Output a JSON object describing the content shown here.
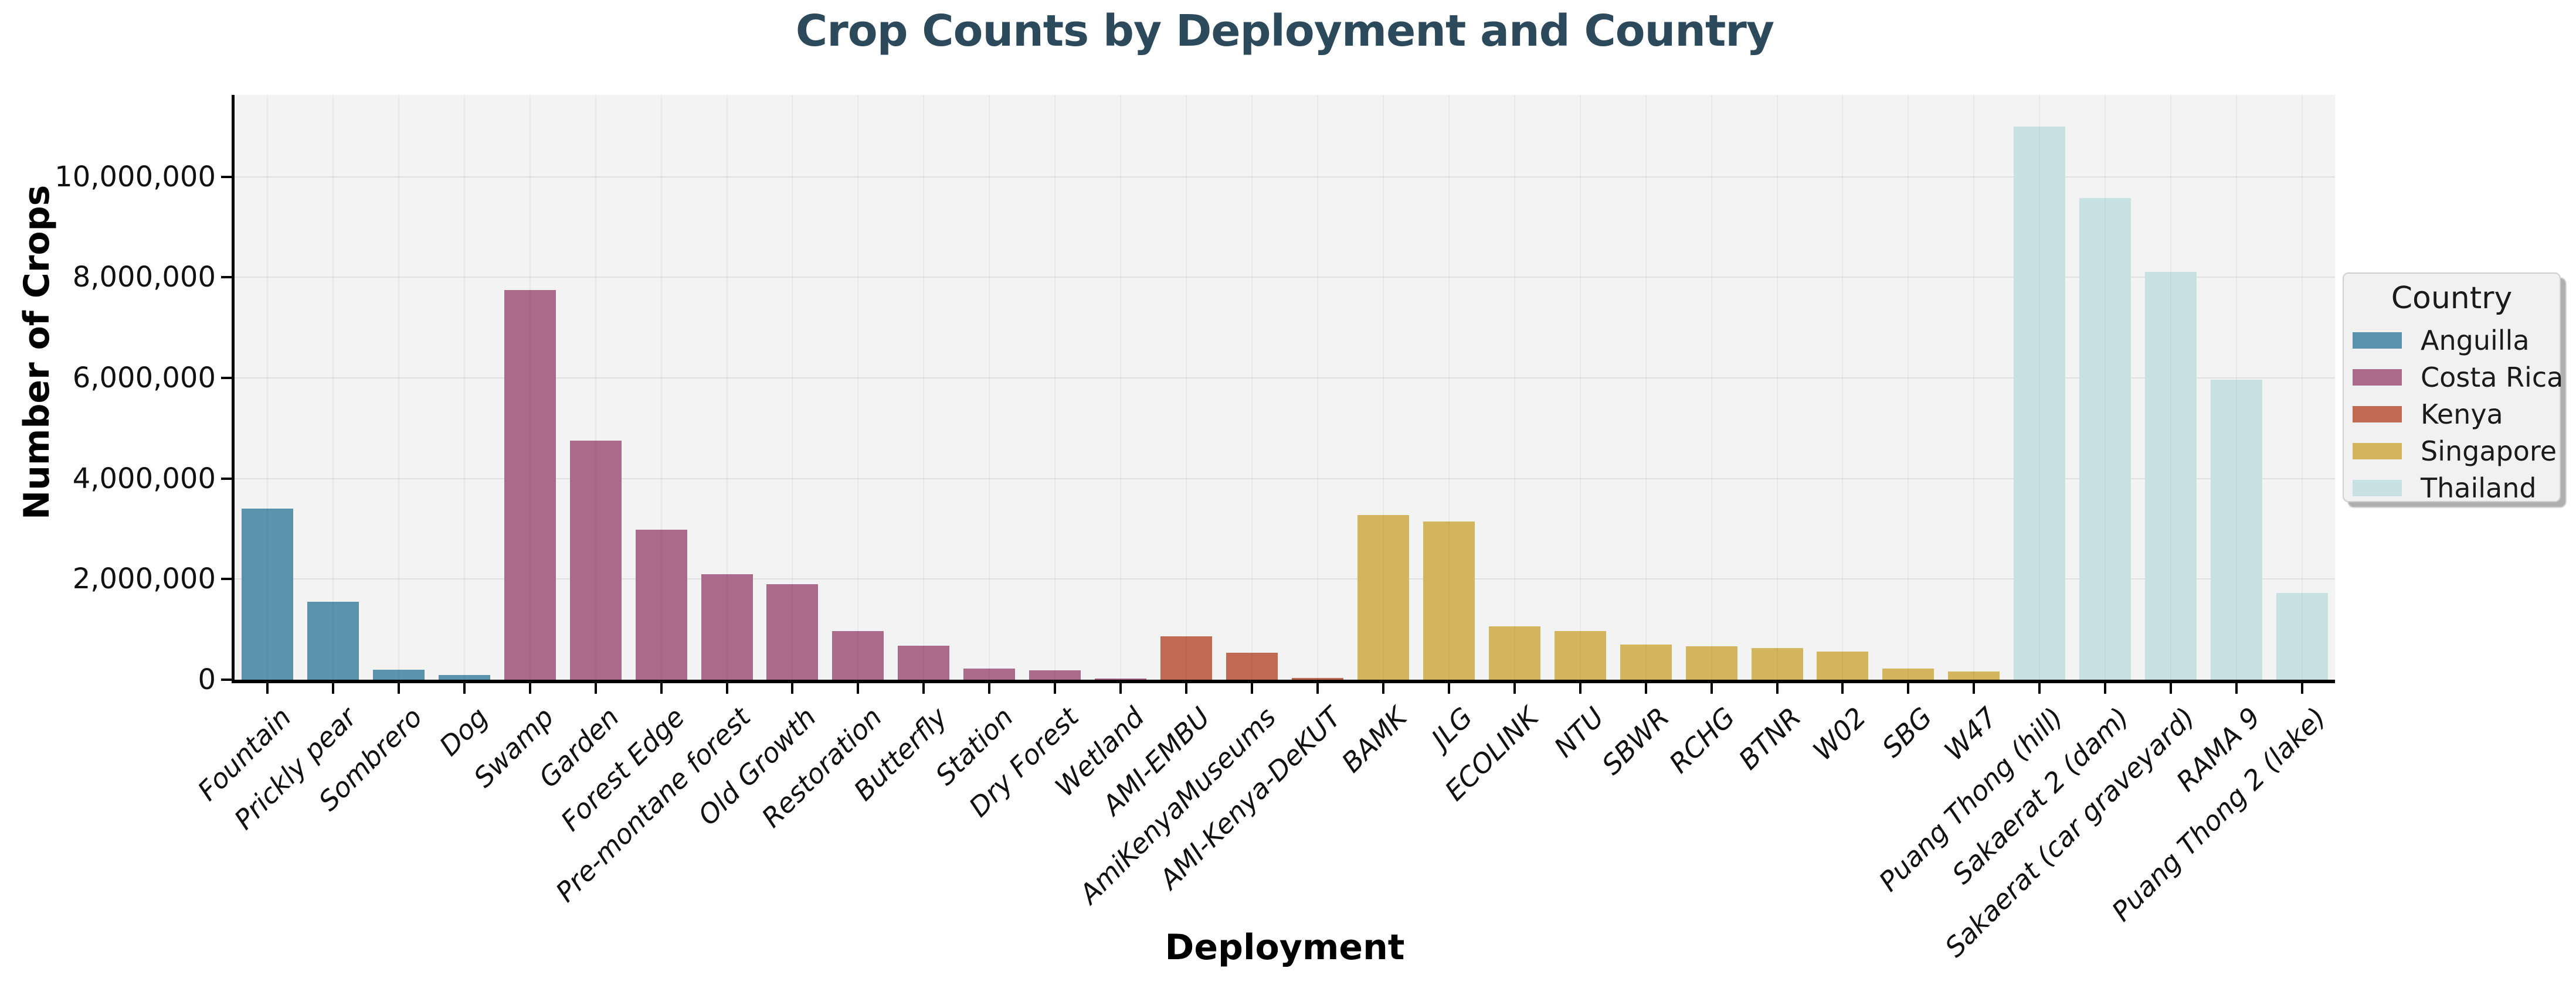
{
  "title": "Crop Counts by Deployment and Country",
  "x_axis_title": "Deployment",
  "y_axis_title": "Number of Crops",
  "legend": {
    "title": "Country",
    "entries": [
      {
        "label": "Anguilla",
        "color": "#5b93ac"
      },
      {
        "label": "Costa Rica",
        "color": "#ab6a8c"
      },
      {
        "label": "Kenya",
        "color": "#c16a51"
      },
      {
        "label": "Singapore",
        "color": "#d3b55e"
      },
      {
        "label": "Thailand",
        "color": "#c8e1e2"
      }
    ]
  },
  "colors": {
    "title_text": "#2d4a5c",
    "plot_background": "#f3f3f3",
    "gridline": "#e1e1e1",
    "axis": "#000000",
    "anguilla": "#5b93ac",
    "costa_rica": "#ab6a8c",
    "kenya": "#c16a51",
    "singapore": "#d3b55e",
    "thailand": "#c8e1e2"
  },
  "chart_data": {
    "type": "bar",
    "title": "Crop Counts by Deployment and Country",
    "xlabel": "Deployment",
    "ylabel": "Number of Crops",
    "ylim": [
      0,
      11630000
    ],
    "grid": true,
    "legend_title": "Country",
    "legend_position": "right",
    "ytick_values": [
      0,
      2000000,
      4000000,
      6000000,
      8000000,
      10000000
    ],
    "ytick_labels": [
      "0",
      "2,000,000",
      "4,000,000",
      "6,000,000",
      "8,000,000",
      "10,000,000"
    ],
    "bars": [
      {
        "deployment": "Fountain",
        "country": "Anguilla",
        "value": 3400000
      },
      {
        "deployment": "Prickly pear",
        "country": "Anguilla",
        "value": 1550000
      },
      {
        "deployment": "Sombrero",
        "country": "Anguilla",
        "value": 195000
      },
      {
        "deployment": "Dog",
        "country": "Anguilla",
        "value": 95000
      },
      {
        "deployment": "Swamp",
        "country": "Costa Rica",
        "value": 7750000
      },
      {
        "deployment": "Garden",
        "country": "Costa Rica",
        "value": 4750000
      },
      {
        "deployment": "Forest Edge",
        "country": "Costa Rica",
        "value": 2980000
      },
      {
        "deployment": "Pre-montane forest",
        "country": "Costa Rica",
        "value": 2100000
      },
      {
        "deployment": "Old Growth",
        "country": "Costa Rica",
        "value": 1900000
      },
      {
        "deployment": "Restoration",
        "country": "Costa Rica",
        "value": 970000
      },
      {
        "deployment": "Butterfly",
        "country": "Costa Rica",
        "value": 680000
      },
      {
        "deployment": "Station",
        "country": "Costa Rica",
        "value": 220000
      },
      {
        "deployment": "Dry Forest",
        "country": "Costa Rica",
        "value": 185000
      },
      {
        "deployment": "Wetland",
        "country": "Costa Rica",
        "value": 25000
      },
      {
        "deployment": "AMI-EMBU",
        "country": "Kenya",
        "value": 860000
      },
      {
        "deployment": "AmiKenyaMuseums",
        "country": "Kenya",
        "value": 540000
      },
      {
        "deployment": "AMI-Kenya-DeKUT",
        "country": "Kenya",
        "value": 40000
      },
      {
        "deployment": "BAMK",
        "country": "Singapore",
        "value": 3280000
      },
      {
        "deployment": "JLG",
        "country": "Singapore",
        "value": 3150000
      },
      {
        "deployment": "ECOLINK",
        "country": "Singapore",
        "value": 1060000
      },
      {
        "deployment": "NTU",
        "country": "Singapore",
        "value": 970000
      },
      {
        "deployment": "SBWR",
        "country": "Singapore",
        "value": 700000
      },
      {
        "deployment": "RCHG",
        "country": "Singapore",
        "value": 670000
      },
      {
        "deployment": "BTNR",
        "country": "Singapore",
        "value": 630000
      },
      {
        "deployment": "W02",
        "country": "Singapore",
        "value": 560000
      },
      {
        "deployment": "SBG",
        "country": "Singapore",
        "value": 220000
      },
      {
        "deployment": "W47",
        "country": "Singapore",
        "value": 160000
      },
      {
        "deployment": "Puang Thong (hill)",
        "country": "Thailand",
        "value": 11000000
      },
      {
        "deployment": "Sakaerat 2 (dam)",
        "country": "Thailand",
        "value": 9580000
      },
      {
        "deployment": "Sakaerat (car graveyard)",
        "country": "Thailand",
        "value": 8110000
      },
      {
        "deployment": "RAMA 9",
        "country": "Thailand",
        "value": 5970000
      },
      {
        "deployment": "Puang Thong 2 (lake)",
        "country": "Thailand",
        "value": 1720000
      }
    ],
    "country_colors": {
      "Anguilla": "#5b93ac",
      "Costa Rica": "#ab6a8c",
      "Kenya": "#c16a51",
      "Singapore": "#d3b55e",
      "Thailand": "#c8e1e2"
    }
  }
}
